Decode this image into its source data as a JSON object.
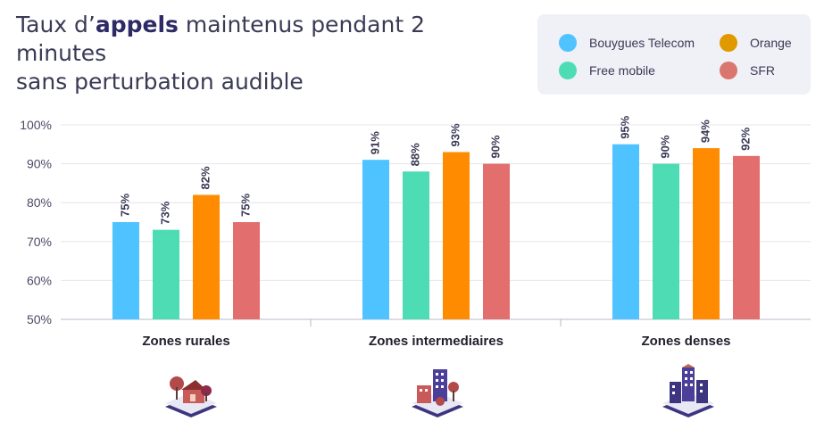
{
  "title": {
    "prefix": "Taux d’",
    "bold": "appels",
    "suffix": " maintenus pendant 2 minutes",
    "line2": "sans perturbation audible"
  },
  "legend": [
    {
      "name": "Bouygues Telecom",
      "color": "#4fc3ff"
    },
    {
      "name": "Orange",
      "color": "#ff8c00"
    },
    {
      "name": "Free mobile",
      "color": "#4ddcb4"
    },
    {
      "name": "SFR",
      "color": "#e36e6e"
    }
  ],
  "chart_data": {
    "type": "bar",
    "categories": [
      "Zones rurales",
      "Zones intermediaires",
      "Zones denses"
    ],
    "series": [
      {
        "name": "Bouygues Telecom",
        "color": "#4fc3ff",
        "values": [
          75,
          91,
          95
        ],
        "labels": [
          "75%",
          "91%",
          "95%"
        ]
      },
      {
        "name": "Free mobile",
        "color": "#4ddcb4",
        "values": [
          73,
          88,
          90
        ],
        "labels": [
          "73%",
          "88%",
          "90%"
        ]
      },
      {
        "name": "Orange",
        "color": "#ff8c00",
        "values": [
          82,
          93,
          94
        ],
        "labels": [
          "82%",
          "93%",
          "94%"
        ]
      },
      {
        "name": "SFR",
        "color": "#e36e6e",
        "values": [
          75,
          90,
          92
        ],
        "labels": [
          "75%",
          "90%",
          "92%"
        ]
      }
    ],
    "yticks": [
      "50%",
      "60%",
      "70%",
      "80%",
      "90%",
      "100%"
    ],
    "ylim": [
      50,
      100
    ],
    "grid": true,
    "legend_position": "top-right"
  },
  "icons": [
    "rural-houses-icon",
    "intermediate-buildings-icon",
    "dense-towers-icon"
  ]
}
